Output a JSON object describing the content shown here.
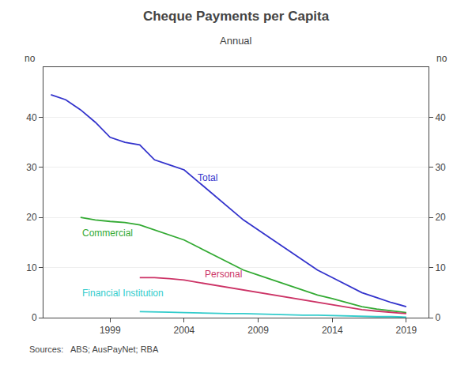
{
  "chart_data": {
    "type": "line",
    "title": "Cheque Payments per Capita",
    "subtitle": "Annual",
    "ylabel": "no",
    "y2label": "no",
    "source": "Sources:   ABS; AusPayNet; RBA",
    "xlim": [
      1994.5,
      2020.5
    ],
    "xticks": [
      1999,
      2004,
      2009,
      2014,
      2019
    ],
    "ylim": [
      0,
      50
    ],
    "yticks": [
      0,
      10,
      20,
      30,
      40
    ],
    "y2lim": [
      0,
      50
    ],
    "y2ticks": [
      0,
      10,
      20,
      30,
      40
    ],
    "grid": "y",
    "series": [
      {
        "name": "Total",
        "color": "#3333cc",
        "label_x": 2004.8,
        "label_y": 26.5,
        "x": [
          1995,
          1996,
          1997,
          1998,
          1999,
          2000,
          2001,
          2002,
          2003,
          2004,
          2005,
          2006,
          2007,
          2008,
          2009,
          2010,
          2011,
          2012,
          2013,
          2014,
          2015,
          2016,
          2017,
          2018,
          2019
        ],
        "values": [
          44.5,
          43.5,
          41.5,
          39.0,
          36.0,
          35.0,
          34.5,
          31.5,
          30.5,
          29.5,
          27.0,
          24.5,
          22.0,
          19.5,
          17.5,
          15.5,
          13.5,
          11.5,
          9.5,
          8.0,
          6.5,
          5.0,
          4.0,
          3.0,
          2.2
        ]
      },
      {
        "name": "Commercial",
        "color": "#33aa33",
        "label_x": 1997.0,
        "label_y": 15.5,
        "x": [
          1997,
          1998,
          1999,
          2000,
          2001,
          2002,
          2003,
          2004,
          2005,
          2006,
          2007,
          2008,
          2009,
          2010,
          2011,
          2012,
          2013,
          2014,
          2015,
          2016,
          2017,
          2018,
          2019
        ],
        "values": [
          20.0,
          19.5,
          19.2,
          19.0,
          18.5,
          17.5,
          16.5,
          15.5,
          14.0,
          12.5,
          11.0,
          9.5,
          8.5,
          7.5,
          6.5,
          5.5,
          4.5,
          3.8,
          3.0,
          2.2,
          1.7,
          1.3,
          1.0
        ]
      },
      {
        "name": "Personal",
        "color": "#cc3366",
        "label_x": 2005.3,
        "label_y": 7.2,
        "x": [
          2001,
          2002,
          2003,
          2004,
          2005,
          2006,
          2007,
          2008,
          2009,
          2010,
          2011,
          2012,
          2013,
          2014,
          2015,
          2016,
          2017,
          2018,
          2019
        ],
        "values": [
          8.0,
          8.0,
          7.8,
          7.5,
          7.0,
          6.5,
          6.0,
          5.5,
          5.0,
          4.5,
          4.0,
          3.5,
          3.0,
          2.5,
          2.0,
          1.6,
          1.3,
          1.0,
          0.8
        ]
      },
      {
        "name": "Financial Institution",
        "color": "#33cccc",
        "label_x": 1997.0,
        "label_y": 3.5,
        "x": [
          2001,
          2002,
          2003,
          2004,
          2005,
          2006,
          2007,
          2008,
          2009,
          2010,
          2011,
          2012,
          2013,
          2014,
          2015,
          2016,
          2017,
          2018,
          2019
        ],
        "values": [
          1.2,
          1.2,
          1.1,
          1.0,
          0.9,
          0.9,
          0.8,
          0.8,
          0.7,
          0.7,
          0.6,
          0.5,
          0.5,
          0.4,
          0.3,
          0.3,
          0.2,
          0.2,
          0.1
        ]
      }
    ]
  }
}
